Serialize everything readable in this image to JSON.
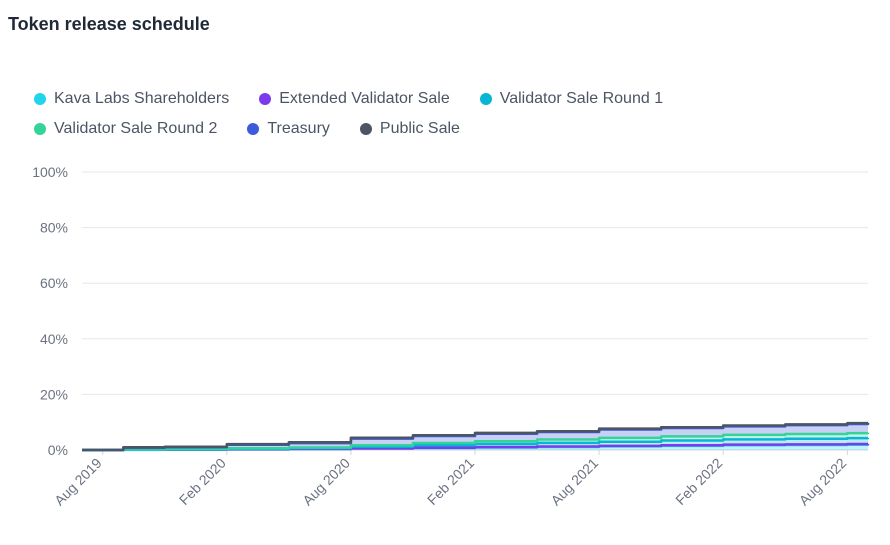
{
  "chart_data": {
    "type": "area",
    "title": "Token release schedule",
    "xlabel": "",
    "ylabel": "",
    "ylim": [
      0,
      100
    ],
    "y_ticks": [
      "0%",
      "20%",
      "40%",
      "60%",
      "80%",
      "100%"
    ],
    "x_ticks": [
      "Aug 2019",
      "Feb 2020",
      "Aug 2020",
      "Feb 2021",
      "Aug 2021",
      "Feb 2022",
      "Aug 2022"
    ],
    "x_range_months": [
      -1,
      37
    ],
    "stacked": true,
    "legend_position": "top-left",
    "series": [
      {
        "name": "Kava Labs Shareholders",
        "color": "#22d3ee",
        "x": [
          -1,
          0,
          1,
          3,
          6,
          9,
          12,
          15,
          18,
          21,
          24,
          27,
          30,
          33,
          36,
          37
        ],
        "values": [
          0,
          0,
          0.05,
          0.1,
          0.2,
          0.3,
          0.5,
          0.7,
          0.9,
          1.1,
          1.3,
          1.5,
          1.7,
          1.8,
          1.9,
          1.95
        ]
      },
      {
        "name": "Extended Validator Sale",
        "color": "#7c3aed",
        "x": [
          -1,
          0,
          1,
          3,
          6,
          9,
          12,
          15,
          18,
          21,
          24,
          27,
          30,
          33,
          36,
          37
        ],
        "values": [
          0,
          0,
          0.02,
          0.04,
          0.06,
          0.08,
          0.1,
          0.12,
          0.14,
          0.16,
          0.18,
          0.2,
          0.22,
          0.24,
          0.26,
          0.27
        ]
      },
      {
        "name": "Validator Sale Round 1",
        "color": "#06b6d4",
        "x": [
          -1,
          0,
          1,
          3,
          6,
          9,
          12,
          15,
          18,
          21,
          24,
          27,
          30,
          33,
          36,
          37
        ],
        "values": [
          0,
          0,
          0.05,
          0.1,
          0.2,
          0.3,
          0.6,
          0.9,
          1.1,
          1.3,
          1.5,
          1.7,
          1.9,
          2.0,
          2.1,
          2.15
        ]
      },
      {
        "name": "Validator Sale Round 2",
        "color": "#34d399",
        "x": [
          -1,
          0,
          1,
          3,
          6,
          9,
          12,
          15,
          18,
          21,
          24,
          27,
          30,
          33,
          36,
          37
        ],
        "values": [
          0,
          0,
          0.05,
          0.1,
          0.15,
          0.2,
          0.5,
          0.8,
          1.0,
          1.2,
          1.4,
          1.5,
          1.6,
          1.7,
          1.8,
          1.85
        ]
      },
      {
        "name": "Treasury",
        "color": "#3b5bdb",
        "x": [
          -1,
          0,
          1,
          3,
          6,
          9,
          12,
          15,
          18,
          21,
          24,
          27,
          30,
          33,
          36,
          37
        ],
        "values": [
          0,
          0,
          0.6,
          0.65,
          1.3,
          1.6,
          2.4,
          2.5,
          2.7,
          2.7,
          3.0,
          3.0,
          3.1,
          3.2,
          3.3,
          3.3
        ]
      },
      {
        "name": "Public Sale",
        "color": "#4b5563",
        "x": [
          -1,
          0,
          1,
          3,
          6,
          9,
          12,
          15,
          18,
          21,
          24,
          27,
          30,
          33,
          36,
          37
        ],
        "values": [
          0,
          0,
          0.2,
          0.2,
          0.2,
          0.3,
          0.3,
          0.3,
          0.3,
          0.3,
          0.3,
          0.3,
          0.3,
          0.3,
          0.3,
          0.3
        ]
      }
    ]
  }
}
